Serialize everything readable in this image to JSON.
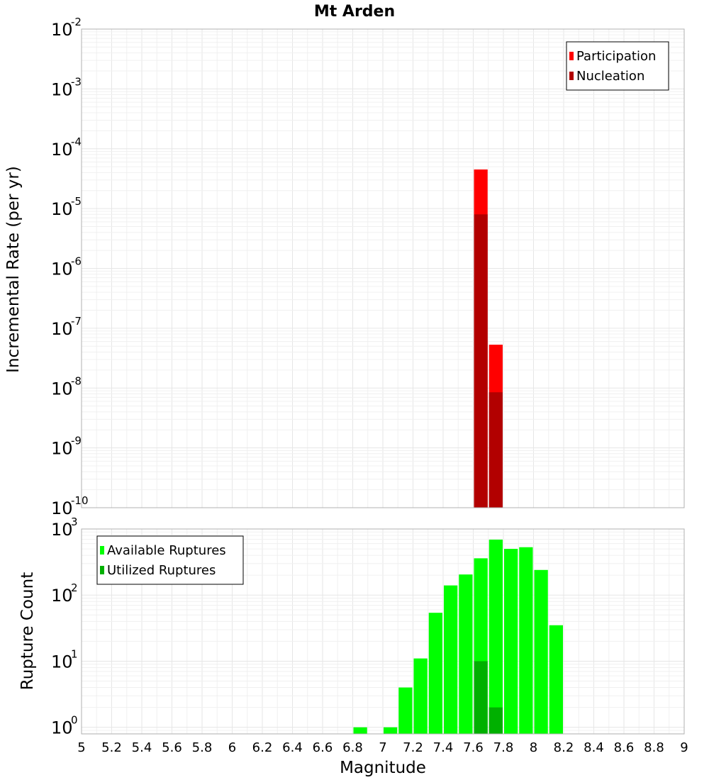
{
  "chart_data": [
    {
      "type": "bar",
      "title": "Mt Arden",
      "xlabel": "",
      "ylabel": "Incremental Rate (per yr)",
      "yscale": "log",
      "ylim_exp": [
        -10,
        -2
      ],
      "xlim": [
        5,
        9
      ],
      "grid": true,
      "legend_position": "top-right",
      "bar_width": 0.1,
      "series": [
        {
          "name": "Participation",
          "color": "#ff0000",
          "x": [
            7.65,
            7.75
          ],
          "values": [
            4.5e-05,
            5.3e-08
          ]
        },
        {
          "name": "Nucleation",
          "color": "#b20000",
          "x": [
            7.65,
            7.75
          ],
          "values": [
            8e-06,
            8.5e-09
          ]
        }
      ]
    },
    {
      "type": "bar",
      "title": "",
      "xlabel": "Magnitude",
      "ylabel": "Rupture Count",
      "yscale": "log",
      "ylim_exp": [
        -0.1,
        3
      ],
      "xlim": [
        5,
        9
      ],
      "grid": true,
      "legend_position": "top-left",
      "bar_width": 0.1,
      "x_ticks": [
        "5",
        "5.2",
        "5.4",
        "5.6",
        "5.8",
        "6",
        "6.2",
        "6.4",
        "6.6",
        "6.8",
        "7",
        "7.2",
        "7.4",
        "7.6",
        "7.8",
        "8",
        "8.2",
        "8.4",
        "8.6",
        "8.8",
        "9"
      ],
      "series": [
        {
          "name": "Available Ruptures",
          "color": "#00ff00",
          "x": [
            6.85,
            7.05,
            7.15,
            7.25,
            7.35,
            7.45,
            7.55,
            7.65,
            7.75,
            7.85,
            7.95,
            8.05,
            8.15
          ],
          "values": [
            1,
            1,
            4,
            11,
            54,
            140,
            205,
            360,
            690,
            500,
            530,
            240,
            35
          ]
        },
        {
          "name": "Utilized Ruptures",
          "color": "#00b000",
          "x": [
            7.65,
            7.75
          ],
          "values": [
            10,
            2
          ]
        }
      ]
    }
  ]
}
